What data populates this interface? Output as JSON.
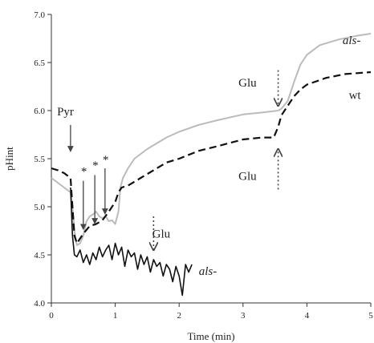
{
  "chart_data": {
    "type": "line",
    "title": "",
    "xlabel": "Time (min)",
    "ylabel": "pHint",
    "xlim": [
      0,
      5
    ],
    "ylim": [
      4.0,
      7.0
    ],
    "xticks": [
      0,
      1,
      2,
      3,
      4,
      5
    ],
    "yticks": [
      4.0,
      4.5,
      5.0,
      5.5,
      6.0,
      6.5,
      7.0
    ],
    "xtick_labels": [
      "0",
      "1",
      "2",
      "3",
      "4",
      "5"
    ],
    "ytick_labels": [
      "4.0",
      "4.5",
      "5.0",
      "5.5",
      "6.0",
      "6.5",
      "7.0"
    ],
    "grid": false,
    "legend": "none",
    "series": [
      {
        "name": "als-",
        "style": "solid",
        "color": "#bbbbbb",
        "x": [
          0,
          0.1,
          0.2,
          0.3,
          0.33,
          0.36,
          0.4,
          0.45,
          0.5,
          0.55,
          0.6,
          0.65,
          0.7,
          0.75,
          0.8,
          0.85,
          0.9,
          0.95,
          1.0,
          1.05,
          1.08,
          1.12,
          1.2,
          1.3,
          1.5,
          1.8,
          2.0,
          2.3,
          2.6,
          3.0,
          3.3,
          3.55,
          3.6,
          3.7,
          3.8,
          3.9,
          4.0,
          4.2,
          4.5,
          4.8,
          5.0
        ],
        "y": [
          5.3,
          5.25,
          5.2,
          5.15,
          5.0,
          4.75,
          4.6,
          4.62,
          4.7,
          4.85,
          4.9,
          4.92,
          4.95,
          4.9,
          4.88,
          4.9,
          4.85,
          4.86,
          4.82,
          4.95,
          5.2,
          5.3,
          5.4,
          5.5,
          5.6,
          5.72,
          5.78,
          5.85,
          5.9,
          5.96,
          5.98,
          6.0,
          6.02,
          6.1,
          6.3,
          6.48,
          6.58,
          6.68,
          6.74,
          6.78,
          6.8
        ]
      },
      {
        "name": "wt",
        "style": "dashed",
        "color": "#111111",
        "x": [
          0,
          0.1,
          0.2,
          0.3,
          0.33,
          0.36,
          0.4,
          0.5,
          0.6,
          0.7,
          0.8,
          0.9,
          1.0,
          1.05,
          1.1,
          1.2,
          1.4,
          1.6,
          1.8,
          2.0,
          2.3,
          2.6,
          3.0,
          3.3,
          3.48,
          3.55,
          3.6,
          3.7,
          3.8,
          3.9,
          4.0,
          4.3,
          4.6,
          5.0
        ],
        "y": [
          5.4,
          5.38,
          5.35,
          5.3,
          5.0,
          4.7,
          4.62,
          4.72,
          4.8,
          4.82,
          4.86,
          4.95,
          5.05,
          5.15,
          5.2,
          5.22,
          5.3,
          5.38,
          5.46,
          5.5,
          5.58,
          5.63,
          5.7,
          5.72,
          5.72,
          5.83,
          5.95,
          6.05,
          6.15,
          6.22,
          6.27,
          6.34,
          6.38,
          6.4
        ]
      },
      {
        "name": "als-",
        "style": "solid",
        "color": "#111111",
        "x": [
          0.3,
          0.33,
          0.36,
          0.4,
          0.45,
          0.5,
          0.55,
          0.6,
          0.65,
          0.7,
          0.75,
          0.8,
          0.85,
          0.9,
          0.95,
          1.0,
          1.05,
          1.1,
          1.15,
          1.2,
          1.25,
          1.3,
          1.35,
          1.4,
          1.45,
          1.5,
          1.55,
          1.6,
          1.65,
          1.7,
          1.75,
          1.8,
          1.85,
          1.9,
          1.95,
          2.0,
          2.05,
          2.1,
          2.15,
          2.2
        ],
        "y": [
          5.2,
          4.7,
          4.5,
          4.48,
          4.55,
          4.42,
          4.5,
          4.4,
          4.52,
          4.45,
          4.58,
          4.48,
          4.55,
          4.6,
          4.45,
          4.62,
          4.5,
          4.58,
          4.38,
          4.55,
          4.48,
          4.52,
          4.35,
          4.5,
          4.4,
          4.48,
          4.32,
          4.45,
          4.38,
          4.42,
          4.28,
          4.4,
          4.35,
          4.22,
          4.38,
          4.28,
          4.08,
          4.4,
          4.32,
          4.4
        ]
      }
    ],
    "annotations": [
      {
        "kind": "arrow",
        "style": "solid",
        "x": 0.3,
        "y_from": 5.85,
        "y_to": 5.58
      },
      {
        "kind": "arrow",
        "style": "solid",
        "x": 0.5,
        "y_from": 5.27,
        "y_to": 4.77
      },
      {
        "kind": "arrow",
        "style": "solid",
        "x": 0.68,
        "y_from": 5.33,
        "y_to": 4.83
      },
      {
        "kind": "arrow",
        "style": "solid",
        "x": 0.84,
        "y_from": 5.4,
        "y_to": 4.93
      },
      {
        "kind": "arrow",
        "style": "dotted",
        "x": 1.6,
        "y_from": 4.9,
        "y_to": 4.55
      },
      {
        "kind": "arrow",
        "style": "dotted",
        "x": 3.55,
        "y_from": 6.42,
        "y_to": 6.05
      },
      {
        "kind": "arrow",
        "style": "dotted",
        "x": 3.55,
        "y_from": 5.18,
        "y_to": 5.6
      }
    ],
    "text_annotations": [
      {
        "text": "Pyr",
        "x": 0.22,
        "y": 5.95,
        "italic": false,
        "size": "large"
      },
      {
        "text": "*",
        "x": 0.51,
        "y": 5.33,
        "italic": false,
        "size": "small"
      },
      {
        "text": "*",
        "x": 0.69,
        "y": 5.39,
        "italic": false,
        "size": "small"
      },
      {
        "text": "*",
        "x": 0.85,
        "y": 5.45,
        "italic": false,
        "size": "small"
      },
      {
        "text": "Glu",
        "x": 1.72,
        "y": 4.68,
        "italic": false,
        "size": "large"
      },
      {
        "text": "Glu",
        "x": 3.07,
        "y": 6.25,
        "italic": false,
        "size": "large"
      },
      {
        "text": "Glu",
        "x": 3.07,
        "y": 5.28,
        "italic": false,
        "size": "large"
      },
      {
        "text": "als-",
        "x": 4.7,
        "y": 6.69,
        "italic": true,
        "size": "large"
      },
      {
        "text": "wt",
        "x": 4.75,
        "y": 6.12,
        "italic": false,
        "size": "large"
      },
      {
        "text": "als-",
        "x": 2.45,
        "y": 4.29,
        "italic": true,
        "size": "large"
      }
    ]
  }
}
